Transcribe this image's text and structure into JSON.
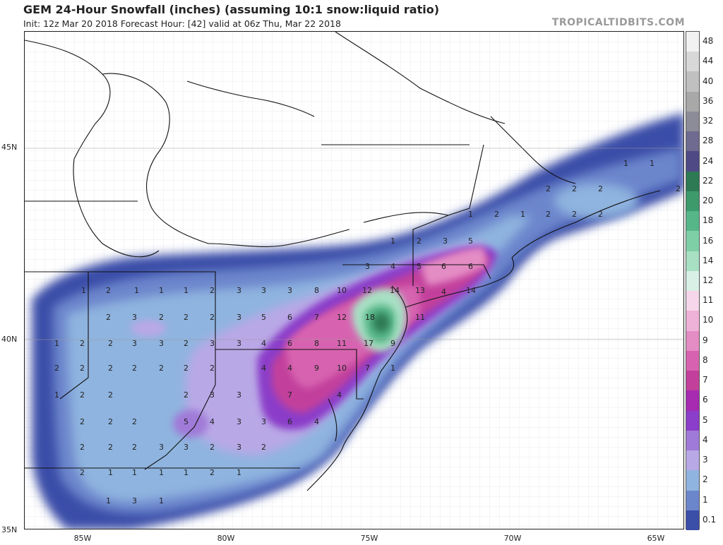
{
  "header": {
    "title": "GEM 24-Hour Snowfall (inches) (assuming 10:1 snow:liquid ratio)",
    "subtitle": "Init: 12z Mar 20 2018   Forecast Hour: [42]   valid at 06z Thu, Mar 22 2018",
    "brand": "TROPICALTIDBITS.COM"
  },
  "axes": {
    "lat_labels": [
      "45N",
      "40N",
      "35N"
    ],
    "lon_labels": [
      "85W",
      "80W",
      "75W",
      "70W",
      "65W"
    ]
  },
  "colorbar": {
    "levels": [
      "48",
      "44",
      "40",
      "36",
      "32",
      "28",
      "24",
      "22",
      "20",
      "18",
      "16",
      "14",
      "12",
      "11",
      "10",
      "9",
      "8",
      "7",
      "6",
      "5",
      "4",
      "3",
      "2",
      "1",
      "0.1"
    ],
    "colors": [
      "#f2f2f2",
      "#d8d8d8",
      "#c0c0c0",
      "#a8a8a8",
      "#8c8c98",
      "#6e6a90",
      "#4f4a86",
      "#2d7a55",
      "#3d9a6a",
      "#56b688",
      "#7fcfa6",
      "#a8e0c4",
      "#d8f0e6",
      "#f5d6ea",
      "#eeb2d8",
      "#e48cc4",
      "#d763b0",
      "#c2409b",
      "#a62bb0",
      "#8b3ec9",
      "#a07ad8",
      "#b9a8e6",
      "#8fb4df",
      "#6c86cc",
      "#3b4ea8"
    ]
  },
  "contour_labels": [
    {
      "v": "1"
    },
    {
      "v": "2"
    },
    {
      "v": "1"
    },
    {
      "v": "1"
    },
    {
      "v": "1"
    },
    {
      "v": "2"
    },
    {
      "v": "3"
    },
    {
      "v": "3"
    },
    {
      "v": "3"
    },
    {
      "v": "8"
    },
    {
      "v": "10"
    },
    {
      "v": "12"
    },
    {
      "v": "14"
    },
    {
      "v": "13"
    },
    {
      "v": "14"
    },
    {
      "v": "2"
    },
    {
      "v": "3"
    },
    {
      "v": "2"
    },
    {
      "v": "2"
    },
    {
      "v": "2"
    },
    {
      "v": "3"
    },
    {
      "v": "5"
    },
    {
      "v": "6"
    },
    {
      "v": "7"
    },
    {
      "v": "12"
    },
    {
      "v": "18"
    },
    {
      "v": "11"
    },
    {
      "v": "1"
    },
    {
      "v": "2"
    },
    {
      "v": "2"
    },
    {
      "v": "3"
    },
    {
      "v": "3"
    },
    {
      "v": "2"
    },
    {
      "v": "3"
    },
    {
      "v": "3"
    },
    {
      "v": "4"
    },
    {
      "v": "6"
    },
    {
      "v": "8"
    },
    {
      "v": "11"
    },
    {
      "v": "17"
    },
    {
      "v": "9"
    },
    {
      "v": "2"
    },
    {
      "v": "2"
    },
    {
      "v": "2"
    },
    {
      "v": "2"
    },
    {
      "v": "2"
    },
    {
      "v": "2"
    },
    {
      "v": "2"
    },
    {
      "v": "4"
    },
    {
      "v": "4"
    },
    {
      "v": "8"
    },
    {
      "v": "9"
    },
    {
      "v": "10"
    },
    {
      "v": "7"
    },
    {
      "v": "1"
    },
    {
      "v": "1"
    },
    {
      "v": "2"
    },
    {
      "v": "2"
    },
    {
      "v": "2"
    },
    {
      "v": "3"
    },
    {
      "v": "3"
    },
    {
      "v": "7"
    },
    {
      "v": "4"
    },
    {
      "v": "2"
    },
    {
      "v": "2"
    },
    {
      "v": "2"
    },
    {
      "v": "5"
    },
    {
      "v": "4"
    },
    {
      "v": "3"
    },
    {
      "v": "3"
    },
    {
      "v": "6"
    },
    {
      "v": "4"
    },
    {
      "v": "2"
    },
    {
      "v": "2"
    },
    {
      "v": "2"
    },
    {
      "v": "3"
    },
    {
      "v": "3"
    },
    {
      "v": "2"
    },
    {
      "v": "3"
    },
    {
      "v": "2"
    },
    {
      "v": "2"
    },
    {
      "v": "1"
    },
    {
      "v": "1"
    },
    {
      "v": "1"
    },
    {
      "v": "1"
    },
    {
      "v": "2"
    },
    {
      "v": "1"
    },
    {
      "v": "1"
    },
    {
      "v": "3"
    },
    {
      "v": "1"
    },
    {
      "v": "3"
    },
    {
      "v": "4"
    },
    {
      "v": "5"
    },
    {
      "v": "6"
    },
    {
      "v": "6"
    },
    {
      "v": "1"
    },
    {
      "v": "2"
    },
    {
      "v": "3"
    },
    {
      "v": "5"
    },
    {
      "v": "4"
    },
    {
      "v": "1"
    },
    {
      "v": "2"
    },
    {
      "v": "1"
    },
    {
      "v": "2"
    },
    {
      "v": "2"
    },
    {
      "v": "2"
    },
    {
      "v": "2"
    },
    {
      "v": "2"
    },
    {
      "v": "2"
    },
    {
      "v": "1"
    },
    {
      "v": "1"
    },
    {
      "v": "2"
    }
  ]
}
